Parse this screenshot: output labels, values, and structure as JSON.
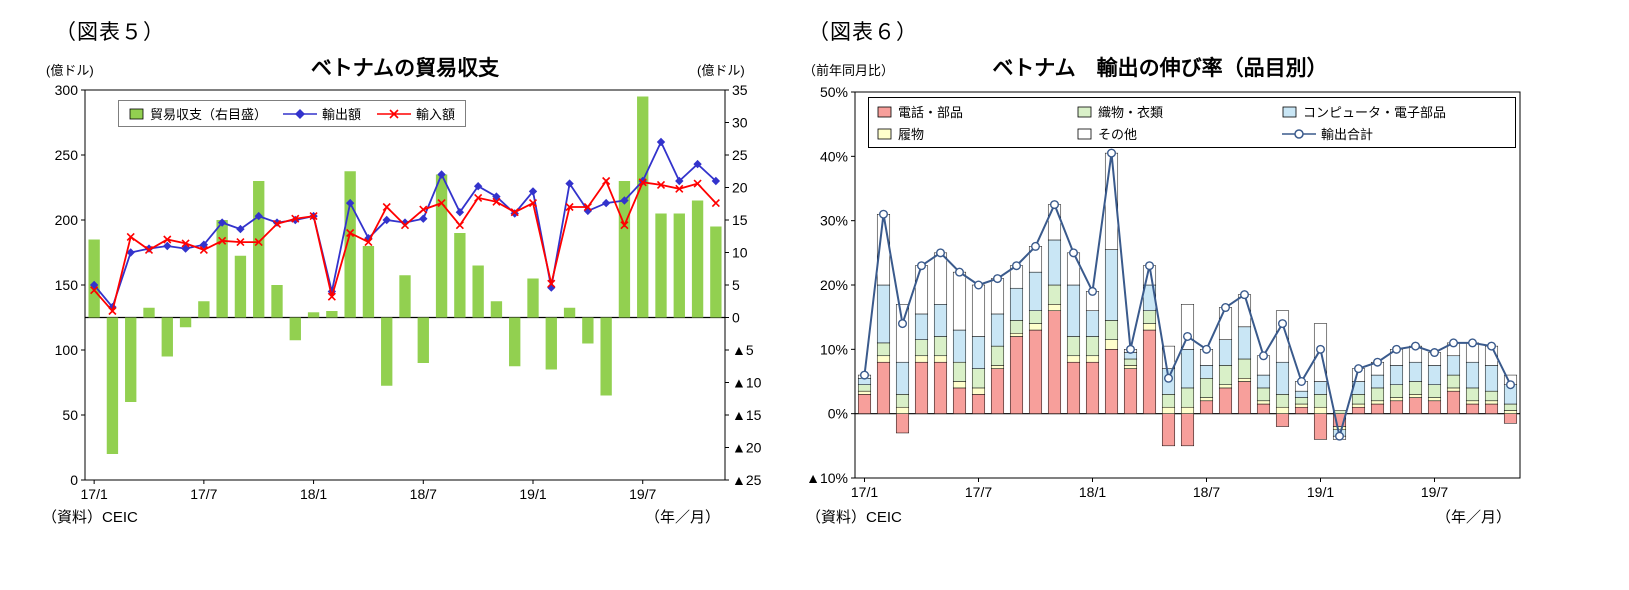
{
  "figure5": {
    "tag": "（図表５）",
    "title": "ベトナムの貿易収支",
    "unit_left": "(億ドル)",
    "unit_right": "(億ドル)",
    "source": "（資料）CEIC",
    "axis_note": "（年／月）",
    "legend": [
      {
        "name": "trade-balance",
        "label": "貿易収支（右目盛）",
        "marker": "bar",
        "color": "#92D050"
      },
      {
        "name": "exports",
        "label": "輸出額",
        "marker": "line-diamond",
        "color": "#3333CC"
      },
      {
        "name": "imports",
        "label": "輸入額",
        "marker": "line-x",
        "color": "#FF0000"
      }
    ],
    "chart_data": {
      "type": "bar+line",
      "title": "ベトナムの貿易収支",
      "x": [
        "17/1",
        "17/2",
        "17/3",
        "17/4",
        "17/5",
        "17/6",
        "17/7",
        "17/8",
        "17/9",
        "17/10",
        "17/11",
        "17/12",
        "18/1",
        "18/2",
        "18/3",
        "18/4",
        "18/5",
        "18/6",
        "18/7",
        "18/8",
        "18/9",
        "18/10",
        "18/11",
        "18/12",
        "19/1",
        "19/2",
        "19/3",
        "19/4",
        "19/5",
        "19/6",
        "19/7",
        "19/8",
        "19/9",
        "19/10",
        "19/11"
      ],
      "x_tick_labels": [
        "17/1",
        "17/7",
        "18/1",
        "18/7",
        "19/1",
        "19/7"
      ],
      "left_axis": {
        "min": 0,
        "max": 300,
        "step": 50,
        "unit": "億ドル"
      },
      "right_axis": {
        "min": -25,
        "max": 35,
        "step": 5,
        "unit": "億ドル"
      },
      "series": [
        {
          "name": "貿易収支（右目盛）",
          "type": "bar",
          "axis": "right",
          "color": "#92D050",
          "values": [
            12,
            -21,
            -13,
            1.5,
            -6,
            -1.5,
            2.5,
            15,
            9.5,
            21,
            5,
            -3.5,
            0.8,
            1,
            22.5,
            11,
            -10.5,
            6.5,
            -7,
            22,
            13,
            8,
            2.5,
            -7.5,
            6,
            -8,
            1.5,
            -4,
            -12,
            21,
            34,
            16,
            16,
            18,
            14
          ]
        },
        {
          "name": "輸出額",
          "type": "line",
          "marker": "diamond",
          "axis": "left",
          "color": "#3333CC",
          "values": [
            150,
            133,
            175,
            178,
            180,
            178,
            181,
            198,
            193,
            203,
            198,
            200,
            203,
            145,
            213,
            186,
            200,
            198,
            201,
            235,
            206,
            226,
            218,
            205,
            222,
            148,
            228,
            207,
            213,
            215,
            230,
            260,
            230,
            243,
            230
          ]
        },
        {
          "name": "輸入額",
          "type": "line",
          "marker": "x",
          "axis": "left",
          "color": "#FF0000",
          "values": [
            146,
            130,
            187,
            177,
            185,
            182,
            177,
            184,
            183,
            183,
            197,
            201,
            203,
            141,
            190,
            183,
            210,
            196,
            208,
            213,
            196,
            217,
            214,
            206,
            213,
            151,
            210,
            210,
            230,
            196,
            229,
            227,
            224,
            228,
            213
          ]
        }
      ]
    }
  },
  "figure6": {
    "tag": "（図表６）",
    "title": "ベトナム　輸出の伸び率（品目別）",
    "unit": "（前年同月比）",
    "source": "（資料）CEIC",
    "axis_note": "（年／月）",
    "legend": [
      {
        "name": "phone-parts",
        "label": "電話・部品",
        "marker": "swatch",
        "color": "#F79F9B"
      },
      {
        "name": "textiles-garments",
        "label": "織物・衣類",
        "marker": "swatch",
        "color": "#D9F0C8"
      },
      {
        "name": "computers-electronics",
        "label": "コンピュータ・電子部品",
        "marker": "swatch",
        "color": "#C9E6F5"
      },
      {
        "name": "footwear",
        "label": "履物",
        "marker": "swatch",
        "color": "#FFFFCC"
      },
      {
        "name": "others",
        "label": "その他",
        "marker": "swatch",
        "color": "#FFFFFF"
      },
      {
        "name": "total-exports",
        "label": "輸出合計",
        "marker": "line-circle",
        "color": "#3A5A8C"
      }
    ],
    "chart_data": {
      "type": "stacked-bar+line",
      "title": "ベトナム　輸出の伸び率（品目別）",
      "x": [
        "17/1",
        "17/2",
        "17/3",
        "17/4",
        "17/5",
        "17/6",
        "17/7",
        "17/8",
        "17/9",
        "17/10",
        "17/11",
        "17/12",
        "18/1",
        "18/2",
        "18/3",
        "18/4",
        "18/5",
        "18/6",
        "18/7",
        "18/8",
        "18/9",
        "18/10",
        "18/11",
        "18/12",
        "19/1",
        "19/2",
        "19/3",
        "19/4",
        "19/5",
        "19/6",
        "19/7",
        "19/8",
        "19/9",
        "19/10",
        "19/11"
      ],
      "x_tick_labels": [
        "17/1",
        "17/7",
        "18/1",
        "18/7",
        "19/1",
        "19/7"
      ],
      "y_axis": {
        "min": -10,
        "max": 50,
        "step": 10,
        "suffix": "%",
        "unit": "前年同月比"
      },
      "stack_series": [
        {
          "name": "電話・部品",
          "color": "#F79F9B",
          "values": [
            3,
            8,
            -3,
            8,
            8,
            4,
            3,
            7,
            12,
            13,
            16,
            8,
            8,
            10,
            7,
            13,
            -5,
            -5,
            2,
            4,
            5,
            1.5,
            -2,
            1,
            -4,
            -2,
            1,
            1.5,
            2,
            2.5,
            2,
            3.5,
            1.5,
            1.5,
            -1.5
          ]
        },
        {
          "name": "履物",
          "color": "#FFFFCC",
          "values": [
            0.5,
            1,
            1,
            1,
            1,
            1,
            1,
            0.5,
            0.5,
            1,
            1,
            1,
            1,
            1.5,
            0.5,
            1,
            1,
            1,
            0.5,
            0.5,
            0.5,
            0.5,
            1,
            0.5,
            1,
            -0.5,
            0.5,
            0.5,
            0.5,
            0.5,
            0.5,
            0.5,
            0.5,
            0.5,
            0.5
          ]
        },
        {
          "name": "織物・衣類",
          "color": "#D9F0C8",
          "values": [
            1,
            2,
            2,
            2.5,
            3,
            3,
            3,
            3,
            2,
            2,
            3,
            3,
            3,
            3,
            1,
            2,
            2,
            3,
            3,
            3,
            3,
            2,
            2,
            1,
            2,
            0.5,
            1.5,
            2,
            2,
            2,
            2,
            2,
            2,
            1.5,
            1
          ]
        },
        {
          "name": "コンピュータ・電子部品",
          "color": "#C9E6F5",
          "values": [
            1,
            9,
            5,
            4,
            5,
            5,
            5,
            5,
            5,
            6,
            7,
            8,
            4,
            11,
            1,
            4,
            4,
            6,
            2,
            4,
            5,
            2,
            5,
            1,
            2,
            -1,
            2,
            2,
            3,
            3,
            3,
            3,
            4,
            4,
            3
          ]
        },
        {
          "name": "その他",
          "color": "#FFFFFF",
          "values": [
            0.5,
            11,
            9,
            7.5,
            8,
            9,
            8,
            5.5,
            3.5,
            4,
            5.5,
            5,
            3,
            15,
            0.5,
            3,
            3.5,
            7,
            2.5,
            5,
            5,
            3,
            8,
            1.5,
            9,
            -0.5,
            2,
            2,
            2.5,
            2.5,
            2,
            2,
            3,
            3,
            1.5
          ]
        }
      ],
      "line_series": {
        "name": "輸出合計",
        "color": "#3A5A8C",
        "values": [
          6,
          31,
          14,
          23,
          25,
          22,
          20,
          21,
          23,
          26,
          32.5,
          25,
          19,
          40.5,
          10,
          23,
          5.5,
          12,
          10,
          16.5,
          18.5,
          9,
          14,
          5,
          10,
          -3.5,
          7,
          8,
          10,
          10.5,
          9.5,
          11,
          11,
          10.5,
          4.5
        ]
      }
    }
  }
}
